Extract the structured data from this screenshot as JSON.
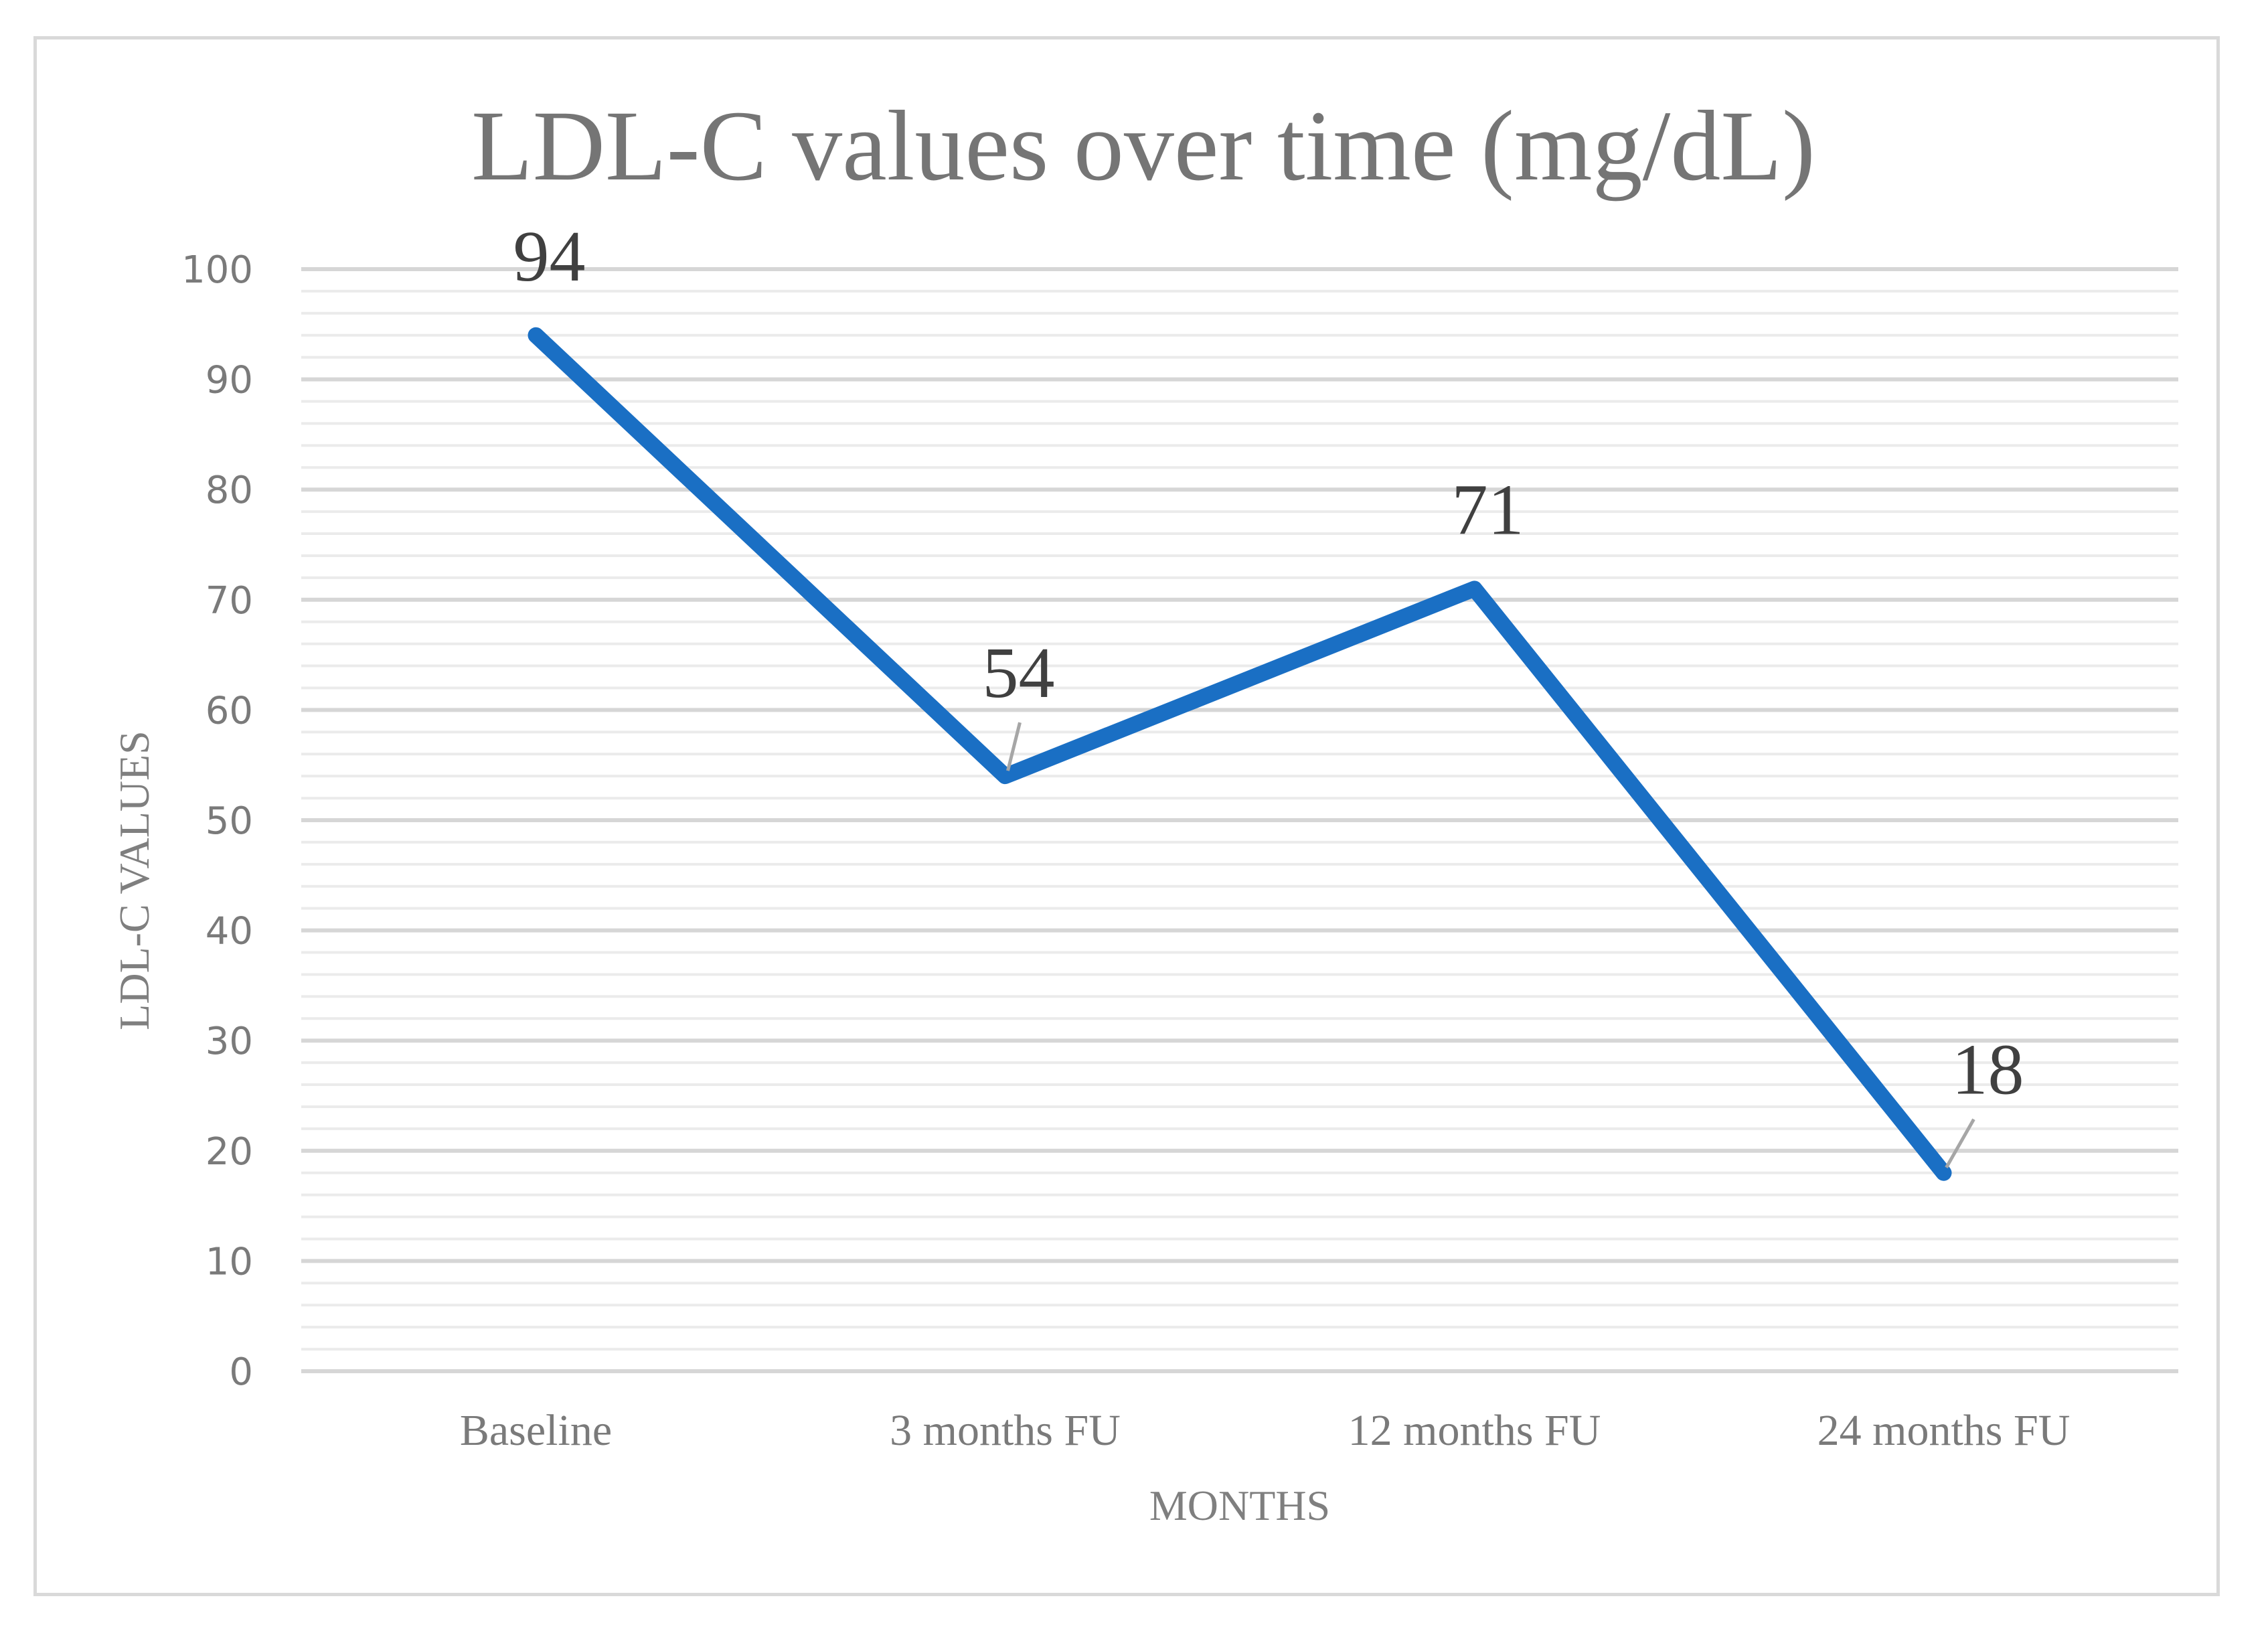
{
  "chart_data": {
    "type": "line",
    "title": "LDL-C values over time (mg/dL)",
    "xlabel": "MONTHS",
    "ylabel": "LDL-C VALUES",
    "categories": [
      "Baseline",
      "3 months FU",
      "12 months FU",
      "24 months FU"
    ],
    "series": [
      {
        "name": "LDL-C",
        "values": [
          94,
          54,
          71,
          18
        ],
        "data_labels": [
          "94",
          "54",
          "71",
          "18"
        ]
      }
    ],
    "ylim": [
      0,
      100
    ],
    "y_ticks": [
      "0",
      "10",
      "20",
      "30",
      "40",
      "50",
      "60",
      "70",
      "80",
      "90",
      "100"
    ],
    "grid": true,
    "minor_grid_step": 2,
    "legend": "none",
    "line_color": "#1a6fc4"
  }
}
